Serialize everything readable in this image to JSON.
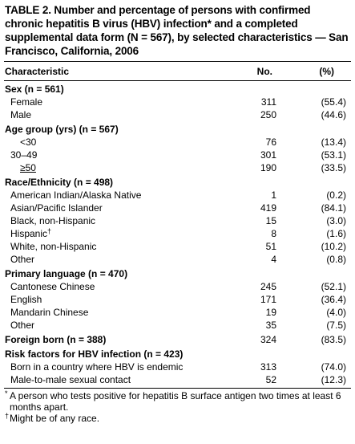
{
  "title": "TABLE 2. Number and percentage of persons with confirmed chronic hepatitis B virus (HBV) infection* and a completed supplemental data form (N = 567), by selected characteristics — San Francisco, California, 2006",
  "headers": {
    "characteristic": "Characteristic",
    "no": "No.",
    "pct": "(%)"
  },
  "groups": [
    {
      "label": "Sex (n = 561)",
      "items": [
        {
          "label": "Female",
          "no": "311",
          "pct": "(55.4)"
        },
        {
          "label": "Male",
          "no": "250",
          "pct": "(44.6)"
        }
      ]
    },
    {
      "label": "Age group (yrs) (n = 567)",
      "items": [
        {
          "label": "<30",
          "no": "76",
          "pct": "(13.4)"
        },
        {
          "label": "30–49",
          "no": "301",
          "pct": "(53.1)"
        },
        {
          "label": "≥50",
          "no": "190",
          "pct": "(33.5)"
        }
      ]
    },
    {
      "label": "Race/Ethnicity (n = 498)",
      "items": [
        {
          "label": "American Indian/Alaska Native",
          "no": "1",
          "pct": "(0.2)"
        },
        {
          "label": "Asian/Pacific Islander",
          "no": "419",
          "pct": "(84.1)"
        },
        {
          "label": "Black, non-Hispanic",
          "no": "15",
          "pct": "(3.0)"
        },
        {
          "label": "Hispanic",
          "marker": "†",
          "no": "8",
          "pct": "(1.6)"
        },
        {
          "label": "White, non-Hispanic",
          "no": "51",
          "pct": "(10.2)"
        },
        {
          "label": "Other",
          "no": "4",
          "pct": "(0.8)"
        }
      ]
    },
    {
      "label": "Primary language (n = 470)",
      "items": [
        {
          "label": "Cantonese Chinese",
          "no": "245",
          "pct": "(52.1)"
        },
        {
          "label": "English",
          "no": "171",
          "pct": "(36.4)"
        },
        {
          "label": "Mandarin Chinese",
          "no": "19",
          "pct": "(4.0)"
        },
        {
          "label": "Other",
          "no": "35",
          "pct": "(7.5)"
        }
      ]
    },
    {
      "label": "Foreign born (n = 388)",
      "no": "324",
      "pct": "(83.5)",
      "items": []
    },
    {
      "label": "Risk factors for HBV infection (n = 423)",
      "items": [
        {
          "label": "Born in a country where HBV is endemic",
          "no": "313",
          "pct": "(74.0)"
        },
        {
          "label": "Male-to-male sexual contact",
          "no": "52",
          "pct": "(12.3)"
        }
      ]
    }
  ],
  "footnotes": [
    {
      "marker": "*",
      "text": "A person who tests positive for hepatitis B surface antigen two times at least 6 months apart."
    },
    {
      "marker": "†",
      "text": "Might be of any race."
    }
  ]
}
